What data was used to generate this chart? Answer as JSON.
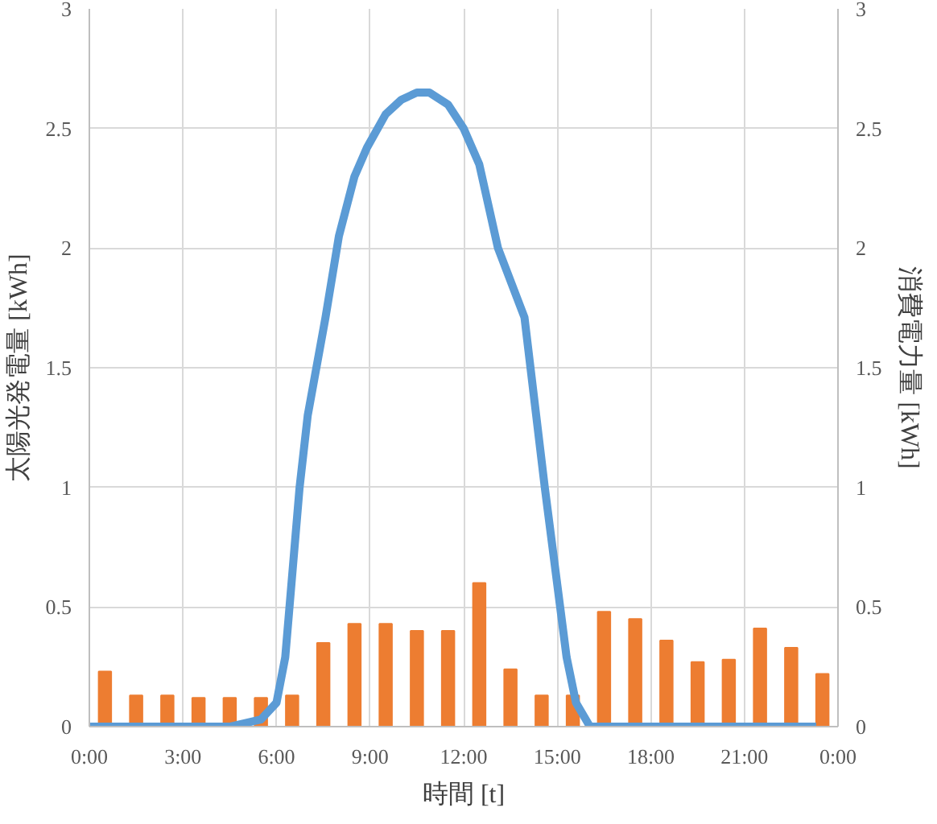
{
  "chart_data": {
    "type": "line",
    "xlabel": "時間 [t]",
    "ylabel": "太陽光発電量 [kWh]",
    "y2label": "消費電力量 [kWh]",
    "xlim": [
      0,
      24
    ],
    "xticks": [
      {
        "value": 0,
        "label": "0:00"
      },
      {
        "value": 3,
        "label": "3:00"
      },
      {
        "value": 6,
        "label": "6:00"
      },
      {
        "value": 9,
        "label": "9:00"
      },
      {
        "value": 12,
        "label": "12:00"
      },
      {
        "value": 15,
        "label": "15:00"
      },
      {
        "value": 18,
        "label": "18:00"
      },
      {
        "value": 21,
        "label": "21:00"
      },
      {
        "value": 24,
        "label": "0:00"
      }
    ],
    "ylim": [
      0,
      3
    ],
    "yticks": [
      0,
      0.5,
      1,
      1.5,
      2,
      2.5,
      3
    ],
    "y2lim": [
      0,
      3
    ],
    "y2ticks": [
      0,
      0.5,
      1,
      1.5,
      2,
      2.5,
      3
    ],
    "grid": true,
    "series": [
      {
        "color": "#5b9bd5",
        "x": [
          0,
          4.5,
          5.5,
          6,
          6.28,
          6.74,
          7,
          7.57,
          8,
          8.5,
          8.9,
          9.5,
          10,
          10.5,
          10.9,
          11.5,
          12,
          12.5,
          13.1,
          13.95,
          14.6,
          15.3,
          15.6,
          16.05,
          23.3
        ],
        "values": [
          0,
          0,
          0.03,
          0.1,
          0.29,
          1.0,
          1.3,
          1.71,
          2.05,
          2.3,
          2.42,
          2.56,
          2.62,
          2.65,
          2.65,
          2.6,
          2.5,
          2.35,
          2.0,
          1.71,
          1.0,
          0.29,
          0.1,
          0,
          0
        ]
      },
      {
        "type": "bar",
        "axis": "y2",
        "color": "#ed7d31",
        "x": [
          0.5,
          1.5,
          2.5,
          3.5,
          4.5,
          5.5,
          6.5,
          7.5,
          8.5,
          9.5,
          10.5,
          11.5,
          12.5,
          13.5,
          14.5,
          15.5,
          16.5,
          17.5,
          18.5,
          19.5,
          20.5,
          21.5,
          22.5,
          23.5
        ],
        "values": [
          0.23,
          0.13,
          0.13,
          0.12,
          0.12,
          0.12,
          0.13,
          0.35,
          0.43,
          0.43,
          0.4,
          0.4,
          0.6,
          0.24,
          0.13,
          0.13,
          0.48,
          0.45,
          0.36,
          0.27,
          0.28,
          0.41,
          0.33,
          0.22
        ]
      }
    ]
  }
}
